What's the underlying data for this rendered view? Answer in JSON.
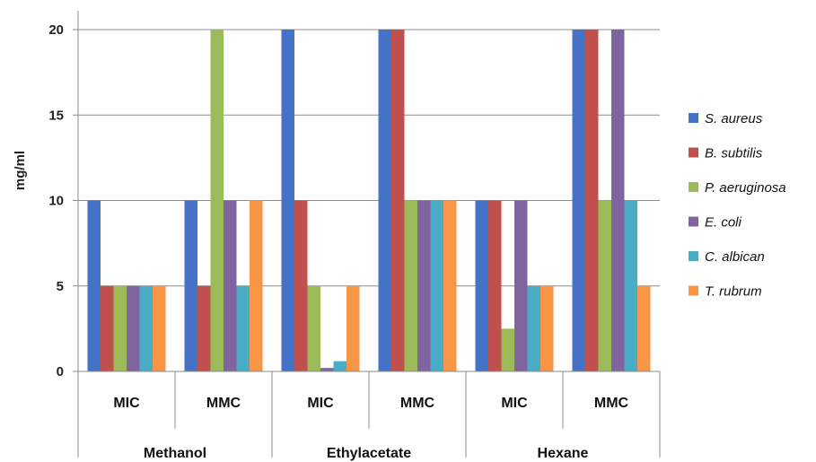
{
  "chart_data": {
    "type": "bar",
    "title": "",
    "xlabel": "",
    "ylabel": "mg/ml",
    "ylim": [
      0,
      20
    ],
    "yticks": [
      0,
      5,
      10,
      15,
      20
    ],
    "grid": true,
    "legend_position": "right",
    "groups": [
      "Methanol",
      "Ethylacetate",
      "Hexane"
    ],
    "categories": [
      "MIC",
      "MMC",
      "MIC",
      "MMC",
      "MIC",
      "MMC"
    ],
    "series": [
      {
        "name": "S. aureus",
        "color": "#4472C4",
        "values": [
          10,
          10,
          20,
          20,
          10,
          20
        ]
      },
      {
        "name": "B. subtilis",
        "color": "#C0504D",
        "values": [
          5,
          5,
          10,
          20,
          10,
          20
        ]
      },
      {
        "name": "P. aeruginosa",
        "color": "#9BBB59",
        "values": [
          5,
          20,
          5,
          10,
          2.5,
          10
        ]
      },
      {
        "name": "E. coli",
        "color": "#8064A2",
        "values": [
          5,
          10,
          0.2,
          10,
          10,
          20
        ]
      },
      {
        "name": "C. albican",
        "color": "#4BACC6",
        "values": [
          5,
          5,
          0.6,
          10,
          5,
          10
        ]
      },
      {
        "name": "T. rubrum",
        "color": "#F79646",
        "values": [
          5,
          10,
          5,
          10,
          5,
          5
        ]
      }
    ]
  }
}
